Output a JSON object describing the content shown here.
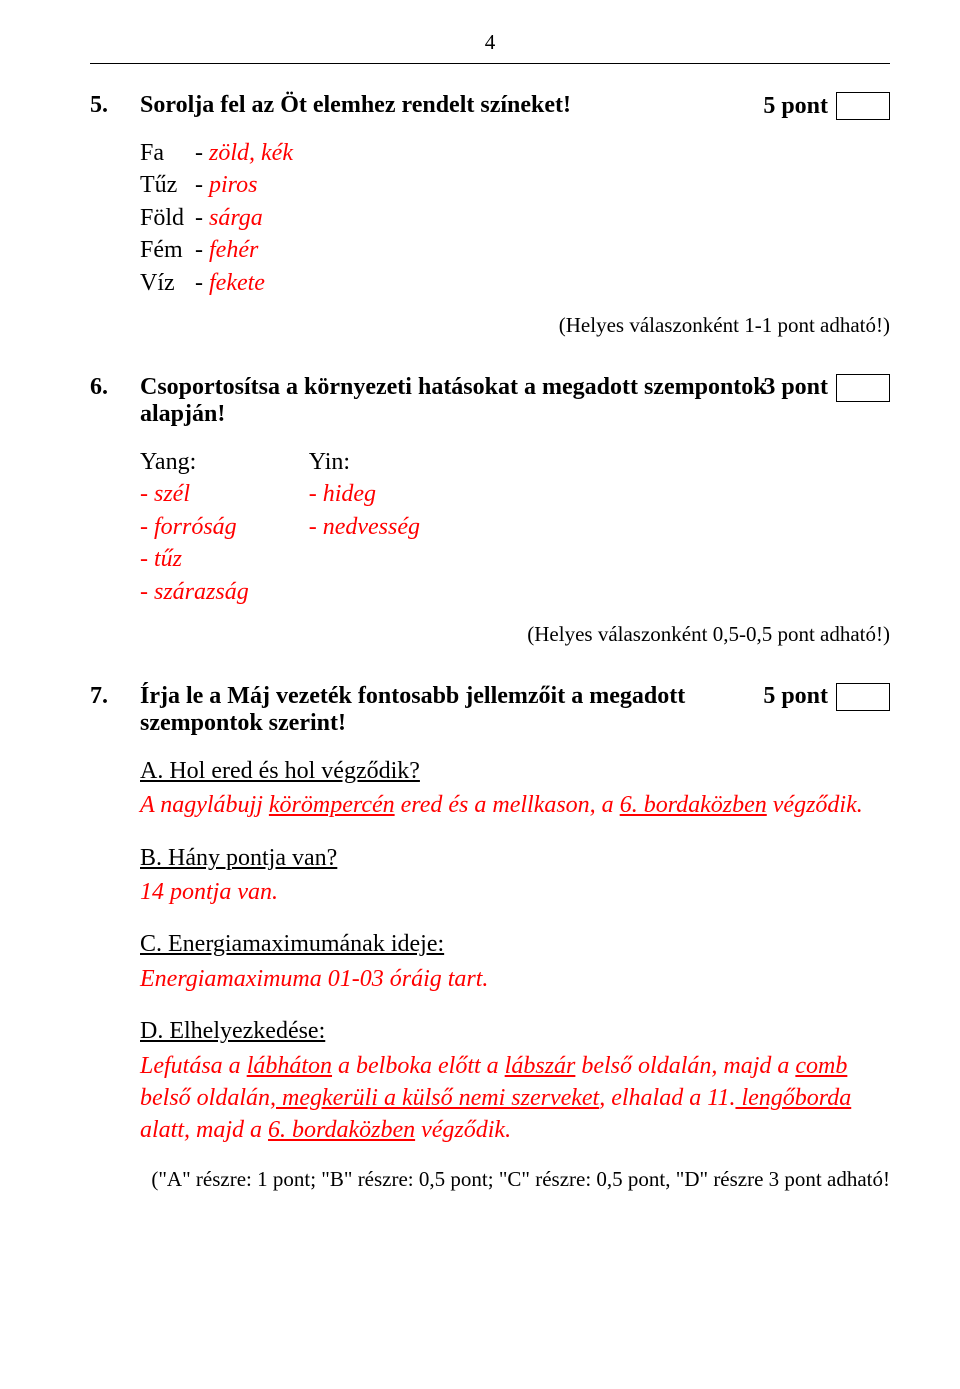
{
  "page_number": "4",
  "q5": {
    "number": "5.",
    "text": "Sorolja fel az Öt elemhez rendelt színeket!",
    "points": "5 pont",
    "items": [
      {
        "label": "Fa",
        "dash": "-",
        "value": "zöld, kék"
      },
      {
        "label": "Tűz",
        "dash": "-",
        "value": "piros"
      },
      {
        "label": "Föld",
        "dash": "-",
        "value": "sárga"
      },
      {
        "label": "Fém",
        "dash": "-",
        "value": "fehér"
      },
      {
        "label": "Víz",
        "dash": "-",
        "value": "fekete"
      }
    ],
    "note": "(Helyes válaszonként 1-1 pont adható!)"
  },
  "q6": {
    "number": "6.",
    "text": "Csoportosítsa a környezeti hatásokat a megadott szempontok alapján!",
    "points": "3 pont",
    "yang_label": "Yang:",
    "yin_label": "Yin:",
    "yang_items": [
      "- szél",
      "- forróság",
      "- tűz",
      "- szárazság"
    ],
    "yin_items": [
      "- hideg",
      "- nedvesség"
    ],
    "note": "(Helyes válaszonként 0,5-0,5 pont adható!)"
  },
  "q7": {
    "number": "7.",
    "text": "Írja le a Máj vezeték fontosabb jellemzőit a megadott szempontok szerint!",
    "points": "5 pont",
    "a": {
      "title": "A. Hol ered és hol végződik?",
      "answer_pre": "A nagylábujj ",
      "answer_u1": "körömpercén",
      "answer_mid": " ered és a mellkason, a ",
      "answer_u2": "6. bordaközben",
      "answer_post": " végződik."
    },
    "b": {
      "title": "B. Hány pontja van?",
      "answer": "14 pontja van."
    },
    "c": {
      "title": "C. Energiamaximumának ideje:",
      "answer": "Energiamaximuma 01-03 óráig tart."
    },
    "d": {
      "title": "D. Elhelyezkedése:",
      "pre": "Lefutása a ",
      "u1": "lábháton",
      "t1": " a belboka előtt a ",
      "u2": "lábszár",
      "t2": " belső oldalán, majd a ",
      "u3": "comb",
      "t3": " belső oldalán,",
      "u4": " megkerüli a külső nemi szerveket",
      "t4": ", elhalad a 11.",
      "u5": " lengőborda",
      "t5": " alatt, majd a ",
      "u6": "6. bordaközben",
      "t6": " végződik."
    },
    "note": "(\"A\" részre: 1 pont; \"B\" részre: 0,5 pont; \"C\" részre: 0,5 pont, \"D\" részre 3 pont adható!"
  }
}
